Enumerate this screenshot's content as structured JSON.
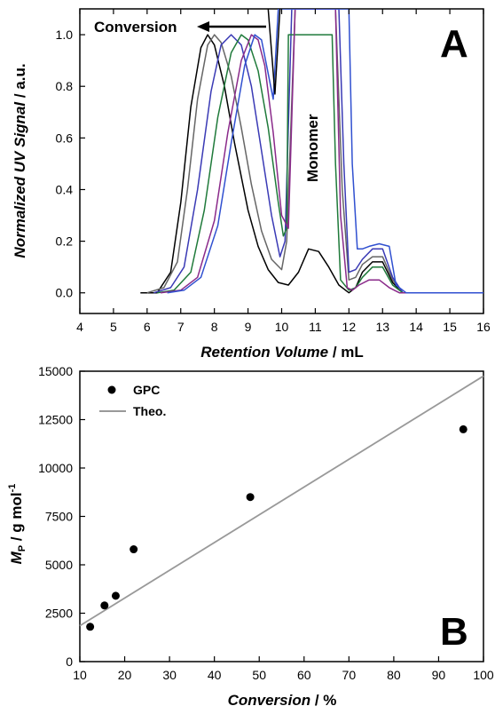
{
  "chart_data": [
    {
      "panel": "A",
      "type": "line",
      "xlabel_italic": "Retention Volume",
      "xlabel_unit": " / mL",
      "ylabel_italic": "Normalized UV Signal",
      "ylabel_unit": " / a.u.",
      "xlim": [
        4,
        16
      ],
      "ylim": [
        -0.08,
        1.1
      ],
      "xticks": [
        "4",
        "5",
        "6",
        "7",
        "8",
        "9",
        "10",
        "11",
        "12",
        "13",
        "14",
        "15",
        "16"
      ],
      "yticks": [
        "0.0",
        "0.2",
        "0.4",
        "0.6",
        "0.8",
        "1.0"
      ],
      "annotations": {
        "conversion": "Conversion",
        "monomer": "Monomer"
      },
      "colors": {
        "black": "#000000",
        "dark_gray": "#666666",
        "blue": "#3a3ab5",
        "green": "#1f7a3a",
        "purple": "#8a2a8a",
        "light_blue": "#3050d0"
      },
      "series": [
        {
          "color": "#000000",
          "x": [
            5.8,
            6.3,
            6.7,
            7.0,
            7.3,
            7.6,
            7.8,
            8.0,
            8.3,
            8.6,
            9.0,
            9.3,
            9.6,
            9.9,
            10.2,
            10.5,
            10.8,
            11.1,
            11.4,
            11.7,
            12.0,
            12.2,
            12.4,
            12.7,
            13.0,
            13.3,
            13.6,
            14.0
          ],
          "y": [
            0.0,
            0.0,
            0.08,
            0.35,
            0.72,
            0.95,
            1.0,
            0.96,
            0.8,
            0.58,
            0.32,
            0.18,
            0.09,
            0.04,
            0.03,
            0.08,
            0.17,
            0.16,
            0.1,
            0.03,
            0.0,
            0.02,
            0.08,
            0.12,
            0.12,
            0.04,
            0.0,
            0.0
          ]
        },
        {
          "color": "#666666",
          "x": [
            6.0,
            6.5,
            6.9,
            7.2,
            7.5,
            7.8,
            8.0,
            8.2,
            8.5,
            8.8,
            9.1,
            9.4,
            9.7,
            10.0,
            10.15,
            10.4,
            11.6,
            11.8,
            12.0,
            12.2,
            12.4,
            12.7,
            13.0,
            13.3,
            13.6,
            14.0
          ],
          "y": [
            0.0,
            0.02,
            0.12,
            0.4,
            0.75,
            0.96,
            1.0,
            0.97,
            0.84,
            0.64,
            0.42,
            0.24,
            0.13,
            0.09,
            0.2,
            1.1,
            1.1,
            0.4,
            0.05,
            0.06,
            0.11,
            0.14,
            0.14,
            0.05,
            0.0,
            0.0
          ]
        },
        {
          "color": "#3a3ab5",
          "x": [
            6.2,
            6.7,
            7.1,
            7.5,
            7.9,
            8.2,
            8.5,
            8.8,
            9.1,
            9.4,
            9.7,
            9.95,
            10.1,
            10.3,
            11.7,
            11.85,
            12.0,
            12.2,
            12.4,
            12.7,
            13.0,
            13.3,
            13.6,
            14.0
          ],
          "y": [
            0.0,
            0.02,
            0.1,
            0.4,
            0.78,
            0.96,
            1.0,
            0.96,
            0.8,
            0.55,
            0.3,
            0.14,
            0.2,
            1.1,
            1.1,
            0.5,
            0.08,
            0.09,
            0.13,
            0.17,
            0.17,
            0.06,
            0.0,
            0.0
          ]
        },
        {
          "color": "#1f7a3a",
          "x": [
            6.3,
            6.8,
            7.3,
            7.7,
            8.1,
            8.5,
            8.8,
            9.0,
            9.3,
            9.6,
            9.9,
            10.05,
            10.15,
            10.2,
            11.5,
            11.6,
            11.75,
            12.0,
            12.2,
            12.4,
            12.7,
            13.0,
            13.3,
            13.6,
            14.0
          ],
          "y": [
            0.0,
            0.01,
            0.08,
            0.32,
            0.68,
            0.93,
            1.0,
            0.98,
            0.86,
            0.64,
            0.35,
            0.22,
            0.25,
            1.0,
            1.0,
            0.5,
            0.05,
            0.01,
            0.02,
            0.06,
            0.1,
            0.1,
            0.03,
            0.0,
            0.0
          ]
        },
        {
          "color": "#8a2a8a",
          "x": [
            6.4,
            7.0,
            7.5,
            8.0,
            8.4,
            8.8,
            9.1,
            9.3,
            9.5,
            9.75,
            10.0,
            10.2,
            10.4,
            11.6,
            11.75,
            11.95,
            12.1,
            12.3,
            12.6,
            12.9,
            13.2,
            13.5,
            14.0
          ],
          "y": [
            0.0,
            0.01,
            0.06,
            0.28,
            0.62,
            0.9,
            1.0,
            0.98,
            0.88,
            0.62,
            0.3,
            0.25,
            1.1,
            1.1,
            0.3,
            0.02,
            0.01,
            0.03,
            0.05,
            0.05,
            0.02,
            0.0,
            0.0
          ]
        },
        {
          "color": "#3050d0",
          "x": [
            6.6,
            7.1,
            7.6,
            8.1,
            8.5,
            8.9,
            9.2,
            9.4,
            9.6,
            9.75,
            9.9,
            10.0,
            10.2,
            12.0,
            12.1,
            12.25,
            12.4,
            12.6,
            12.9,
            13.2,
            13.4,
            13.7,
            14.2,
            15.0,
            16.0
          ],
          "y": [
            0.0,
            0.01,
            0.06,
            0.26,
            0.58,
            0.88,
            1.0,
            0.98,
            0.85,
            0.75,
            1.1,
            1.1,
            1.1,
            1.1,
            0.5,
            0.17,
            0.17,
            0.18,
            0.19,
            0.18,
            0.03,
            0.0,
            0.0,
            0.0,
            0.0
          ]
        },
        {
          "color": "#000000",
          "x": [
            9.6,
            9.8,
            9.95
          ],
          "y": [
            1.1,
            0.77,
            1.1
          ]
        }
      ]
    },
    {
      "panel": "B",
      "type": "scatter",
      "xlabel_italic": "Conversion",
      "xlabel_unit": " / %",
      "ylabel_main": "M",
      "ylabel_sub": "P",
      "ylabel_unit": " / g mol",
      "ylabel_sup": "-1",
      "xlim": [
        10,
        100
      ],
      "ylim": [
        0,
        15000
      ],
      "xticks": [
        "10",
        "20",
        "30",
        "40",
        "50",
        "60",
        "70",
        "80",
        "90",
        "100"
      ],
      "yticks": [
        "0",
        "2500",
        "5000",
        "7500",
        "10000",
        "12500",
        "15000"
      ],
      "legend": {
        "gpc": "GPC",
        "theo": "Theo."
      },
      "series": [
        {
          "name": "GPC",
          "kind": "points",
          "x": [
            12.3,
            15.5,
            18.0,
            22.0,
            48.0,
            95.5
          ],
          "y": [
            1800,
            2900,
            3400,
            5800,
            8500,
            12000
          ]
        },
        {
          "name": "Theo.",
          "kind": "line",
          "x": [
            10,
            100
          ],
          "y": [
            1850,
            14750
          ]
        }
      ]
    }
  ],
  "panel_labels": {
    "a": "A",
    "b": "B"
  }
}
